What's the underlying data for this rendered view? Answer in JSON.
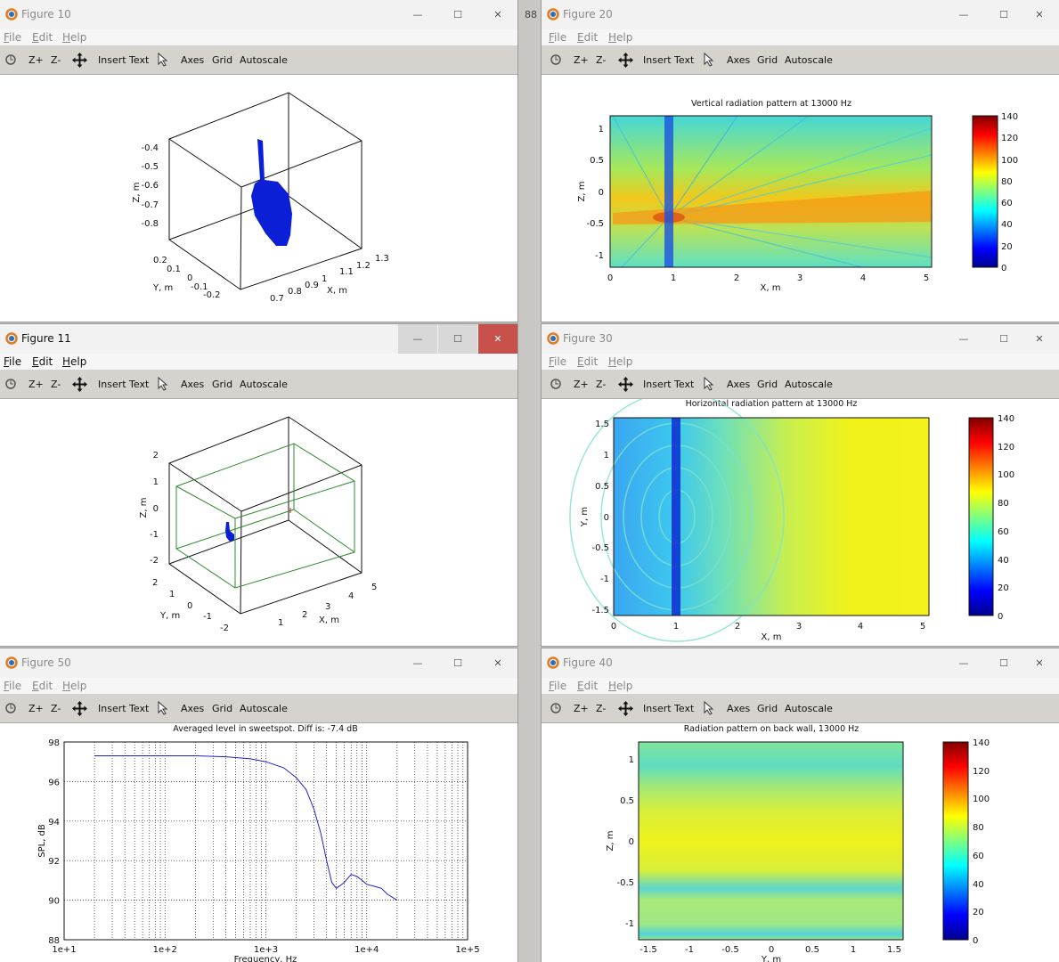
{
  "windows": [
    {
      "id": "fig10",
      "title": "Figure 10"
    },
    {
      "id": "fig20",
      "title": "Figure 20"
    },
    {
      "id": "fig11",
      "title": "Figure 11"
    },
    {
      "id": "fig30",
      "title": "Figure 30"
    },
    {
      "id": "fig50",
      "title": "Figure 50"
    },
    {
      "id": "fig40",
      "title": "Figure 40"
    }
  ],
  "menu": {
    "file": "File",
    "edit": "Edit",
    "help": "Help"
  },
  "toolbar": {
    "zoom_in": "Z+",
    "zoom_out": "Z-",
    "insert_text": "Insert Text",
    "axes": "Axes",
    "grid": "Grid",
    "autoscale": "Autoscale"
  },
  "window_buttons": {
    "minimize": "—",
    "maximize": "☐",
    "close": "✕"
  },
  "background_text": "88",
  "colors": {
    "bar_bg": "#f2f2f2",
    "toolbar_bg": "#d6d3ce",
    "close_active": "#c7504a",
    "blue_object": "#0b1fd6",
    "room_outline": "#2e8b2e",
    "line": "#2020c8"
  },
  "fig10": {
    "zlabel": "Z, m",
    "ylabel": "Y, m",
    "xlabel": "X, m",
    "zticks": [
      "-0.4",
      "-0.5",
      "-0.6",
      "-0.7",
      "-0.8"
    ],
    "yticks": [
      "0.2",
      "0.1",
      "0",
      "-0.1",
      "-0.2"
    ],
    "xticks": [
      "0.7",
      "0.8",
      "0.9",
      "1",
      "1.1",
      "1.2",
      "1.3"
    ]
  },
  "fig11": {
    "zlabel": "Z, m",
    "ylabel": "Y, m",
    "xlabel": "X, m",
    "zticks": [
      "2",
      "1",
      "0",
      "-1",
      "-2"
    ],
    "yticks": [
      "2",
      "1",
      "0",
      "-1",
      "-2"
    ],
    "xticks": [
      "1",
      "2",
      "3",
      "4",
      "5"
    ]
  },
  "fig20": {
    "title": "Vertical radiation pattern at 13000 Hz",
    "xlabel": "X, m",
    "ylabel": "Z, m",
    "xticks": [
      "0",
      "1",
      "2",
      "3",
      "4",
      "5"
    ],
    "yticks": [
      "1",
      "0.5",
      "0",
      "-0.5",
      "-1"
    ],
    "cbticks": [
      "140",
      "120",
      "100",
      "80",
      "60",
      "40",
      "20",
      "0"
    ]
  },
  "fig30": {
    "title": "Horizontal radiation pattern at 13000 Hz",
    "xlabel": "X, m",
    "ylabel": "Y, m",
    "xticks": [
      "0",
      "1",
      "2",
      "3",
      "4",
      "5"
    ],
    "yticks": [
      "1.5",
      "1",
      "0.5",
      "0",
      "-0.5",
      "-1",
      "-1.5"
    ],
    "cbticks": [
      "140",
      "120",
      "100",
      "80",
      "60",
      "40",
      "20",
      "0"
    ]
  },
  "fig40": {
    "title": "Radiation pattern on back wall, 13000 Hz",
    "xlabel": "Y, m",
    "ylabel": "Z, m",
    "xticks": [
      "-1.5",
      "-1",
      "-0.5",
      "0",
      "0.5",
      "1",
      "1.5"
    ],
    "yticks": [
      "1",
      "0.5",
      "0",
      "-0.5",
      "-1"
    ],
    "cbticks": [
      "140",
      "120",
      "100",
      "80",
      "60",
      "40",
      "20",
      "0"
    ]
  },
  "chart_data": {
    "type": "line",
    "title": "Averaged level in sweetspot. Diff is: -7.4 dB",
    "xlabel": "Frequency, Hz",
    "ylabel": "SPL, dB",
    "xscale": "log",
    "xlim": [
      10,
      100000
    ],
    "ylim": [
      88,
      98
    ],
    "grid": true,
    "xticks": [
      "1e+1",
      "1e+2",
      "1e+3",
      "1e+4",
      "1e+5"
    ],
    "yticks": [
      "98",
      "96",
      "94",
      "92",
      "90",
      "88"
    ],
    "x": [
      20,
      50,
      100,
      200,
      400,
      700,
      1000,
      1500,
      2000,
      2500,
      3000,
      3500,
      4000,
      4500,
      5000,
      6000,
      7000,
      8000,
      9000,
      10000,
      12000,
      14000,
      16000,
      20000
    ],
    "y": [
      97.3,
      97.3,
      97.3,
      97.3,
      97.25,
      97.15,
      97.0,
      96.7,
      96.2,
      95.6,
      94.6,
      93.4,
      92.0,
      90.9,
      90.6,
      90.9,
      91.3,
      91.2,
      91.0,
      90.8,
      90.7,
      90.6,
      90.3,
      90.0
    ]
  }
}
